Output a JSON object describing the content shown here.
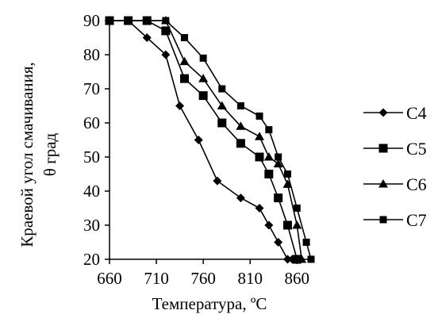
{
  "chart_data": {
    "type": "line",
    "xlabel": "Температура, ºС",
    "ylabel_lines": [
      "Краевой угол смачивания,",
      "θ град"
    ],
    "xlim": [
      660,
      875
    ],
    "ylim": [
      20,
      90
    ],
    "x_ticks": [
      660,
      710,
      760,
      810,
      860
    ],
    "y_ticks": [
      20,
      30,
      40,
      50,
      60,
      70,
      80,
      90
    ],
    "grid": false,
    "legend_position": "right",
    "series": [
      {
        "name": "C4",
        "marker": "diamond",
        "x": [
          660,
          680,
          700,
          720,
          735,
          755,
          775,
          800,
          820,
          830,
          840,
          850,
          855
        ],
        "y": [
          90,
          90,
          85,
          80,
          65,
          55,
          43,
          38,
          35,
          30,
          25,
          20,
          20
        ]
      },
      {
        "name": "C5",
        "marker": "square",
        "x": [
          660,
          680,
          700,
          720,
          740,
          760,
          780,
          800,
          820,
          830,
          840,
          850,
          860
        ],
        "y": [
          90,
          90,
          90,
          87,
          73,
          68,
          60,
          54,
          50,
          45,
          38,
          30,
          20
        ]
      },
      {
        "name": "C6",
        "marker": "triangle",
        "x": [
          660,
          680,
          700,
          720,
          740,
          760,
          780,
          800,
          820,
          830,
          840,
          850,
          860,
          865
        ],
        "y": [
          90,
          90,
          90,
          90,
          78,
          73,
          65,
          59,
          56,
          50,
          48,
          42,
          30,
          20
        ]
      },
      {
        "name": "C7",
        "marker": "square-small",
        "x": [
          660,
          680,
          700,
          720,
          740,
          760,
          780,
          800,
          820,
          830,
          840,
          850,
          860,
          870,
          875
        ],
        "y": [
          90,
          90,
          90,
          90,
          85,
          79,
          70,
          65,
          62,
          58,
          50,
          45,
          35,
          25,
          20
        ]
      }
    ]
  }
}
